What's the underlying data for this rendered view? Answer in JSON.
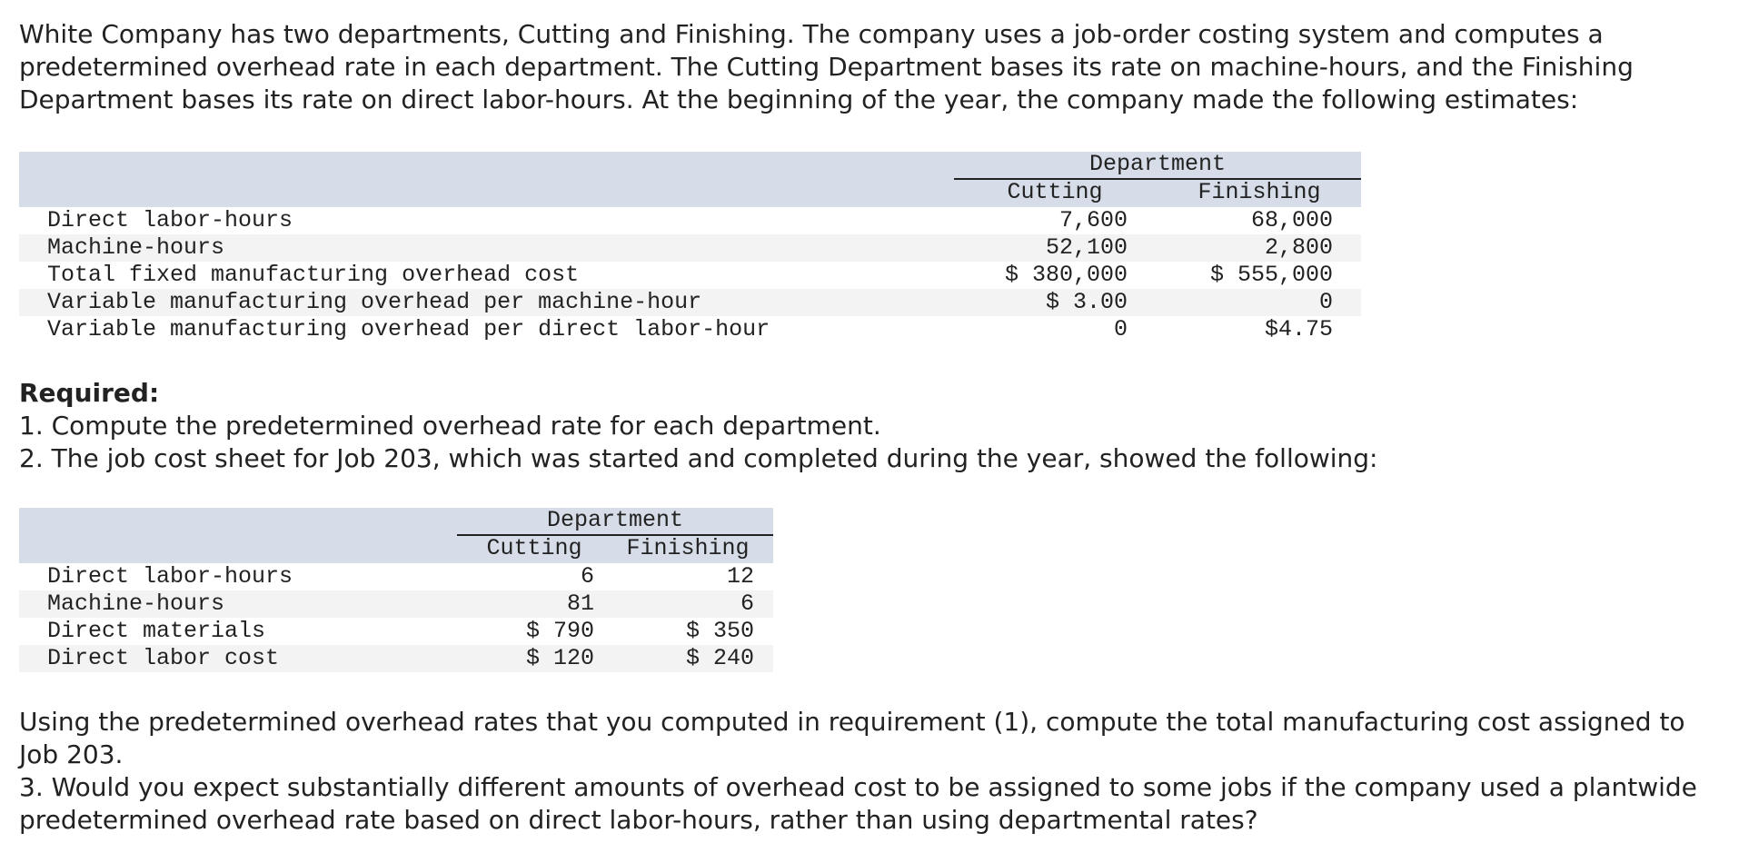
{
  "intro": "White Company has two departments, Cutting and Finishing. The company uses a job-order costing system and computes a predetermined overhead rate in each department. The Cutting Department bases its rate on machine-hours, and the Finishing Department bases its rate on direct labor-hours. At the beginning of the year, the company made the following estimates:",
  "table1": {
    "group_header": "Department",
    "columns": [
      "Cutting",
      "Finishing"
    ],
    "rows": [
      [
        "Direct labor-hours",
        "7,600",
        "68,000"
      ],
      [
        "Machine-hours",
        "52,100",
        "2,800"
      ],
      [
        "Total fixed manufacturing overhead cost",
        "$ 380,000",
        "$ 555,000"
      ],
      [
        "Variable manufacturing overhead per machine-hour",
        "$ 3.00",
        "0"
      ],
      [
        "Variable manufacturing overhead per direct labor-hour",
        "0",
        "$4.75"
      ]
    ]
  },
  "required": {
    "heading": "Required:",
    "items": [
      "1. Compute the predetermined overhead rate for each department.",
      "2. The job cost sheet for Job 203, which was started and completed during the year, showed the following:"
    ]
  },
  "table2": {
    "group_header": "Department",
    "columns": [
      "Cutting",
      "Finishing"
    ],
    "rows": [
      [
        "Direct labor-hours",
        "6",
        "12"
      ],
      [
        "Machine-hours",
        "81",
        "6"
      ],
      [
        "Direct materials",
        "$ 790",
        "$ 350"
      ],
      [
        "Direct labor cost",
        "$ 120",
        "$ 240"
      ]
    ]
  },
  "closing": [
    "Using the predetermined overhead rates that you computed in requirement (1), compute the total manufacturing cost assigned to Job 203.",
    "3. Would you expect substantially different amounts of overhead cost to be assigned to some jobs if the company used a plantwide predetermined overhead rate based on direct labor-hours, rather than using departmental rates?"
  ]
}
